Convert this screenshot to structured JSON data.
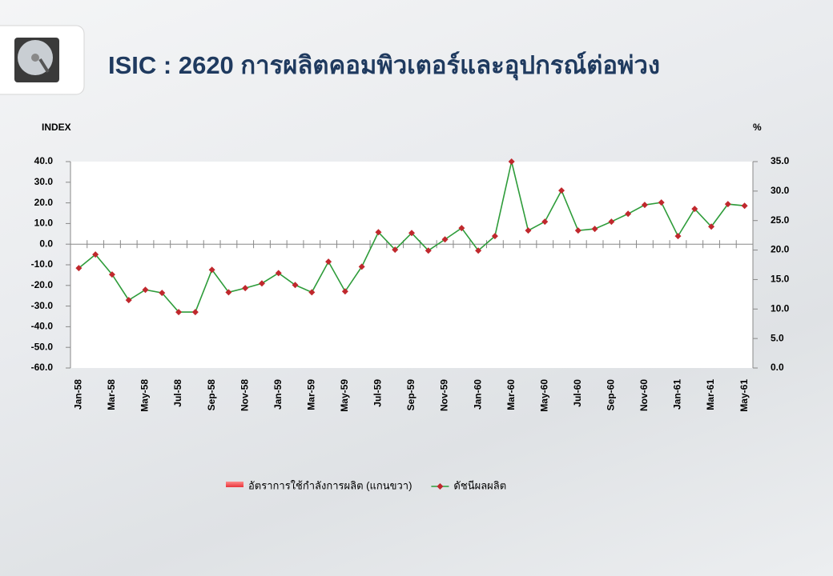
{
  "chart_data": {
    "type": "line",
    "title": "ISIC : 2620 การผลิตคอมพิวเตอร์และอุปกรณ์ต่อพ่วง",
    "y_label": "INDEX",
    "y2_label": "%",
    "categories": [
      "Jan-58",
      null,
      "Mar-58",
      null,
      "May-58",
      null,
      "Jul-58",
      null,
      "Sep-58",
      null,
      "Nov-58",
      null,
      "Jan-59",
      null,
      "Mar-59",
      null,
      "May-59",
      null,
      "Jul-59",
      null,
      "Sep-59",
      null,
      "Nov-59",
      null,
      "Jan-60",
      null,
      "Mar-60",
      null,
      "May-60",
      null,
      "Jul-60",
      null,
      "Sep-60",
      null,
      "Nov-60",
      null,
      "Jan-61",
      null,
      "Mar-61",
      null,
      "May-61"
    ],
    "series": [
      {
        "name": "อัตราการใช้กำลังการผลิต (แกนขวา)",
        "type": "bar",
        "axis": "y2",
        "color": "#e8343a",
        "values": [
          null,
          null,
          null,
          null,
          null,
          null,
          null,
          null,
          null,
          null,
          null,
          null,
          null,
          null,
          null,
          null,
          null,
          null,
          null,
          null,
          null,
          null,
          null,
          null,
          null,
          null,
          null,
          null,
          null,
          null,
          null,
          null,
          null,
          null,
          null,
          null,
          null,
          null,
          null,
          null,
          null
        ]
      },
      {
        "name": "ดัชนีผลผลิต",
        "type": "line",
        "color": "#2e9c3a",
        "marker_color": "#c0282d",
        "values": [
          -11.6,
          -5,
          -14.7,
          -27.1,
          -22.1,
          -23.6,
          -32.9,
          -32.9,
          -12.4,
          -23.3,
          -21.3,
          -19,
          -14,
          -19.8,
          -23.3,
          -8.5,
          -22.9,
          -10.9,
          5.8,
          -2.7,
          5.4,
          -3.1,
          2.3,
          7.8,
          -3.1,
          3.9,
          40,
          6.6,
          10.9,
          26,
          6.6,
          7.4,
          10.9,
          14.7,
          19,
          20.2,
          3.9,
          17.1,
          8.5,
          19.4,
          18.6
        ]
      }
    ],
    "ylim": [
      -60,
      40
    ],
    "yticks": [
      {
        "value": -60,
        "label": "-60.0"
      },
      {
        "value": -50,
        "label": "-50.0"
      },
      {
        "value": -40,
        "label": "-40.0"
      },
      {
        "value": -30,
        "label": "-30.0"
      },
      {
        "value": -20,
        "label": "-20.0"
      },
      {
        "value": -10,
        "label": "-10.0"
      },
      {
        "value": 0,
        "label": "0.0"
      },
      {
        "value": 10,
        "label": "10.0"
      },
      {
        "value": 20,
        "label": "20.0"
      },
      {
        "value": 30,
        "label": "30.0"
      },
      {
        "value": 40,
        "label": "40.0"
      }
    ],
    "y2lim": [
      0,
      35
    ],
    "y2ticks": [
      {
        "value": 0,
        "label": "0.0"
      },
      {
        "value": 5,
        "label": "5.0"
      },
      {
        "value": 10,
        "label": "10.0"
      },
      {
        "value": 15,
        "label": "15.0"
      },
      {
        "value": 20,
        "label": "20.0"
      },
      {
        "value": 25,
        "label": "25.0"
      },
      {
        "value": 30,
        "label": "30.0"
      },
      {
        "value": 35,
        "label": "35.0"
      }
    ]
  }
}
